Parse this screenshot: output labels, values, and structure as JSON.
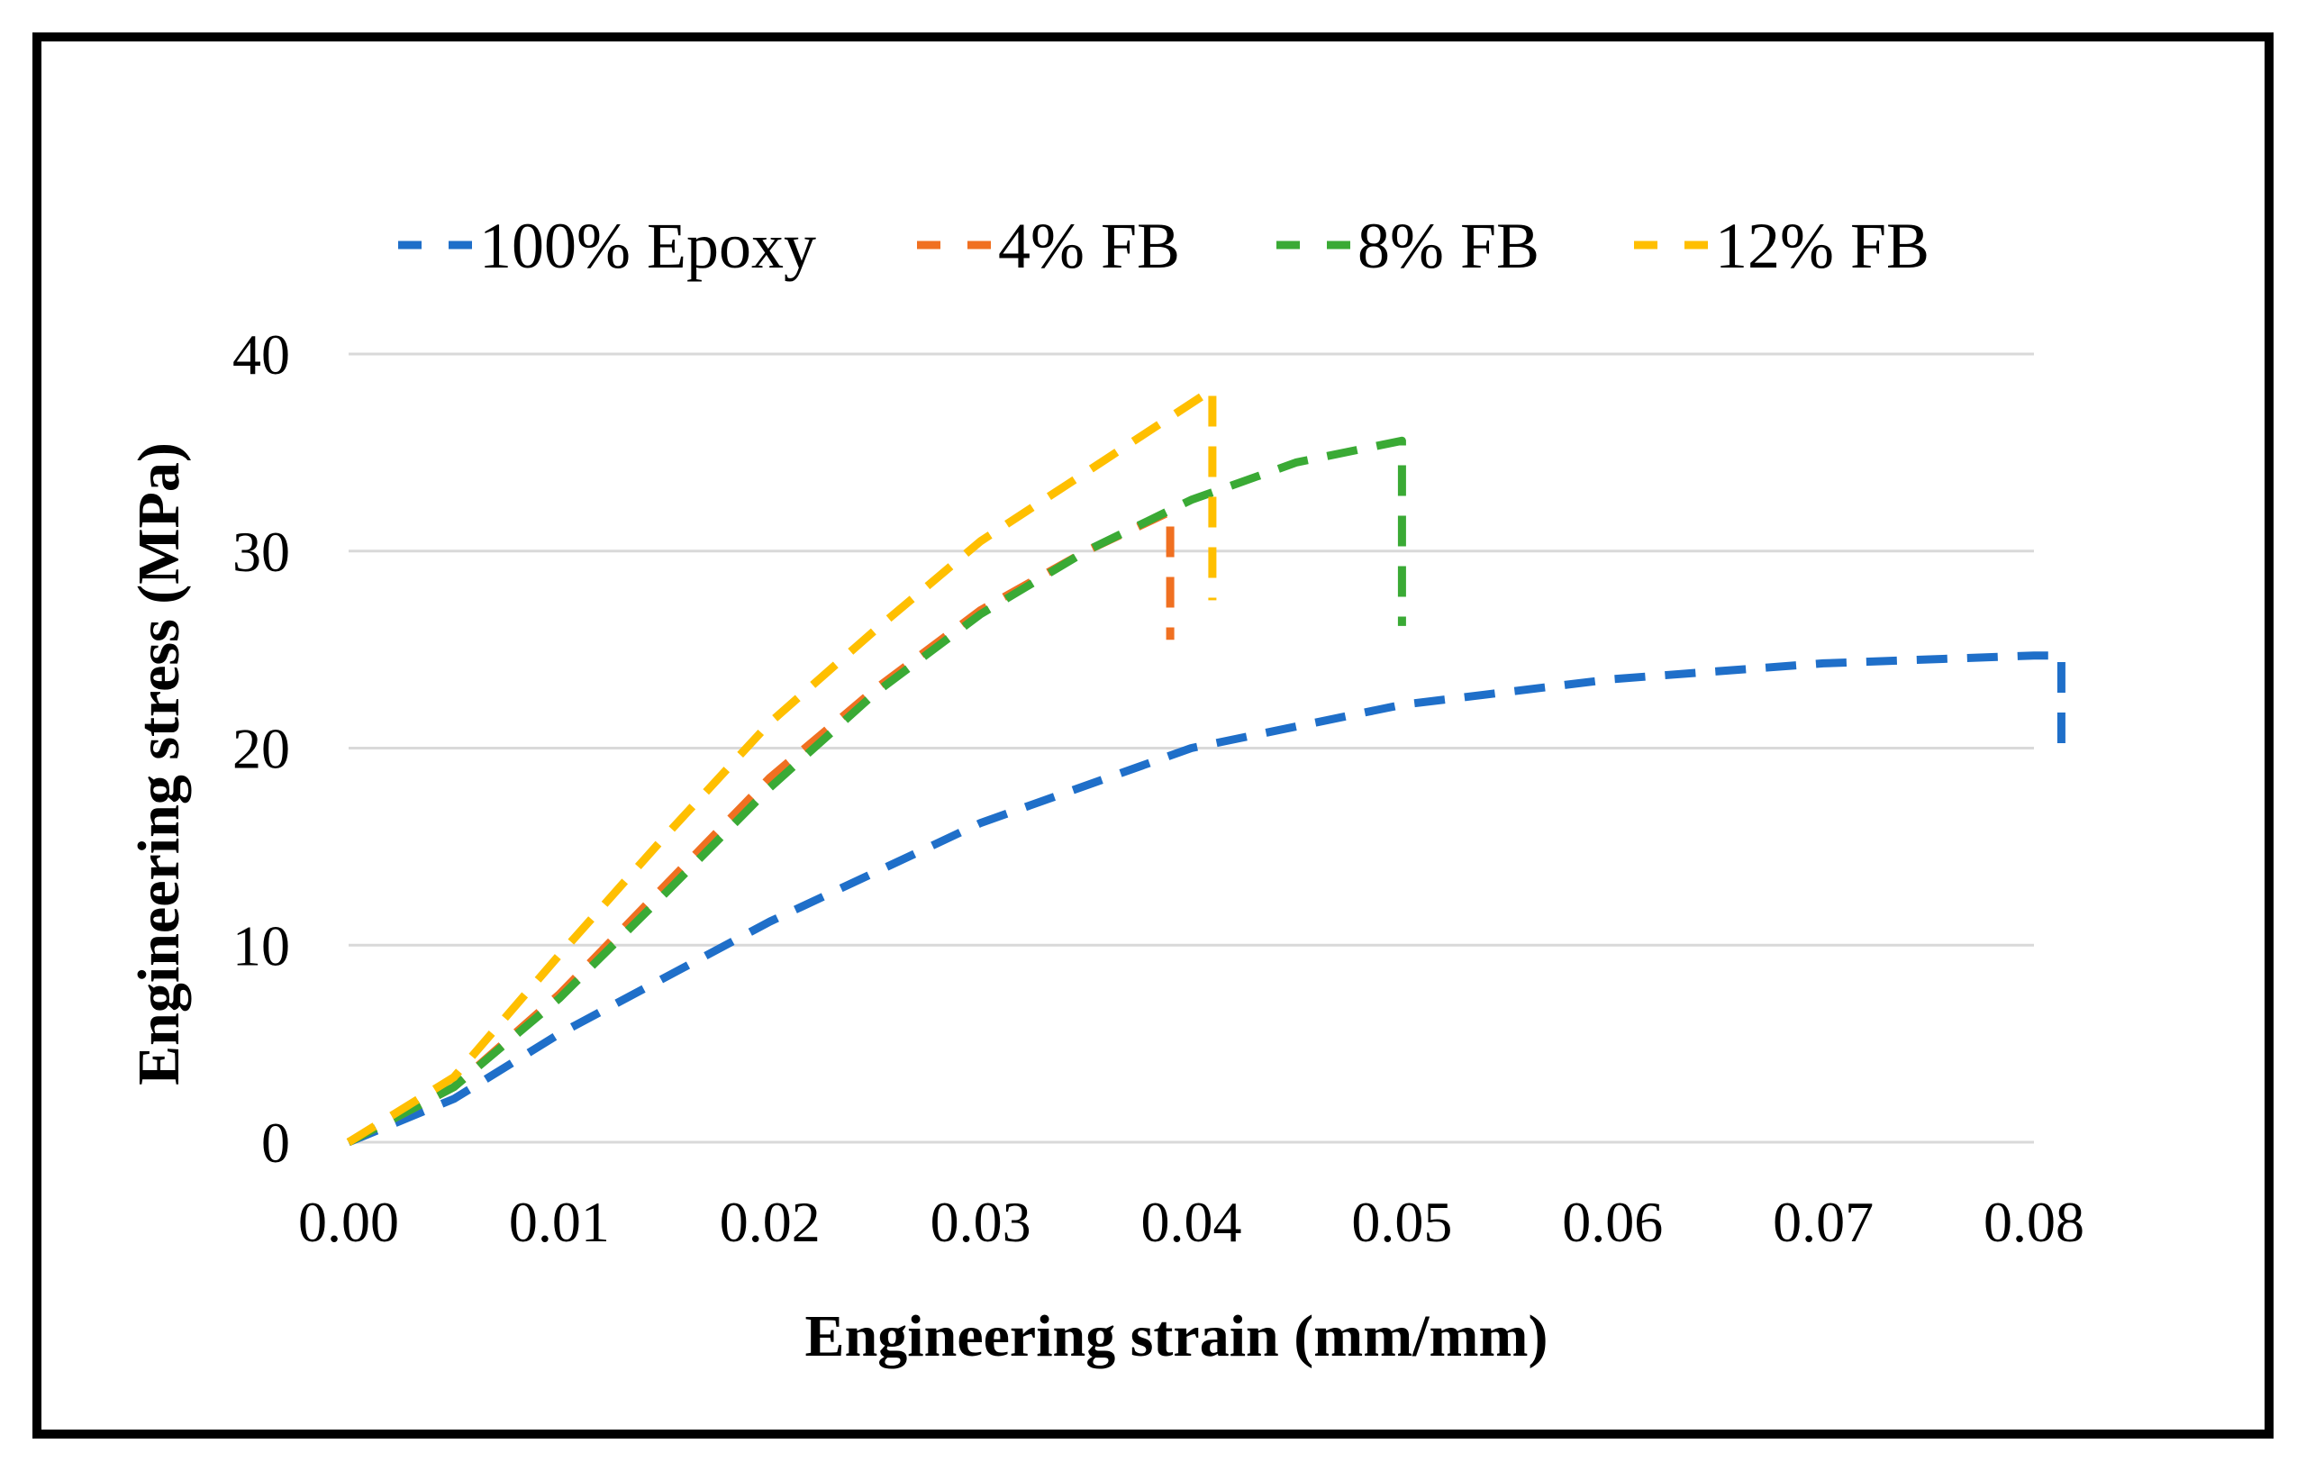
{
  "chart_data": {
    "type": "line",
    "xlabel": "Engineering strain (mm/mm)",
    "ylabel": "Engineering stress (MPa)",
    "xlim": [
      0,
      0.08
    ],
    "ylim": [
      0,
      40
    ],
    "x_ticks": [
      "0.00",
      "0.01",
      "0.02",
      "0.03",
      "0.04",
      "0.05",
      "0.06",
      "0.07",
      "0.08"
    ],
    "y_ticks": [
      "0",
      "10",
      "20",
      "30",
      "40"
    ],
    "grid": "horizontal",
    "legend_position": "top",
    "line_style": "dashed",
    "series": [
      {
        "name": "100% Epoxy",
        "color": "#1f6fc9",
        "points": [
          [
            0,
            0
          ],
          [
            0.005,
            2.2
          ],
          [
            0.01,
            5.5
          ],
          [
            0.02,
            11.2
          ],
          [
            0.03,
            16.2
          ],
          [
            0.04,
            20.0
          ],
          [
            0.05,
            22.2
          ],
          [
            0.06,
            23.5
          ],
          [
            0.07,
            24.3
          ],
          [
            0.08,
            24.7
          ],
          [
            0.0813,
            24.7
          ],
          [
            0.0813,
            19.5
          ]
        ]
      },
      {
        "name": "4% FB",
        "color": "#f07021",
        "points": [
          [
            0,
            0
          ],
          [
            0.005,
            2.8
          ],
          [
            0.01,
            7.5
          ],
          [
            0.015,
            13.0
          ],
          [
            0.02,
            18.5
          ],
          [
            0.025,
            23.0
          ],
          [
            0.03,
            27.0
          ],
          [
            0.035,
            30.0
          ],
          [
            0.039,
            32.0
          ],
          [
            0.039,
            25.5
          ]
        ]
      },
      {
        "name": "8% FB",
        "color": "#3aaa35",
        "points": [
          [
            0,
            0
          ],
          [
            0.005,
            2.8
          ],
          [
            0.01,
            7.3
          ],
          [
            0.015,
            12.6
          ],
          [
            0.02,
            18.0
          ],
          [
            0.025,
            22.8
          ],
          [
            0.03,
            26.8
          ],
          [
            0.035,
            30.0
          ],
          [
            0.04,
            32.6
          ],
          [
            0.045,
            34.5
          ],
          [
            0.05,
            35.6
          ],
          [
            0.05,
            26.2
          ]
        ]
      },
      {
        "name": "12% FB",
        "color": "#ffbf00",
        "points": [
          [
            0,
            0
          ],
          [
            0.005,
            3.3
          ],
          [
            0.01,
            9.5
          ],
          [
            0.015,
            15.5
          ],
          [
            0.02,
            21.3
          ],
          [
            0.025,
            26.0
          ],
          [
            0.03,
            30.5
          ],
          [
            0.035,
            34.0
          ],
          [
            0.041,
            38.2
          ],
          [
            0.041,
            27.5
          ]
        ]
      }
    ]
  }
}
